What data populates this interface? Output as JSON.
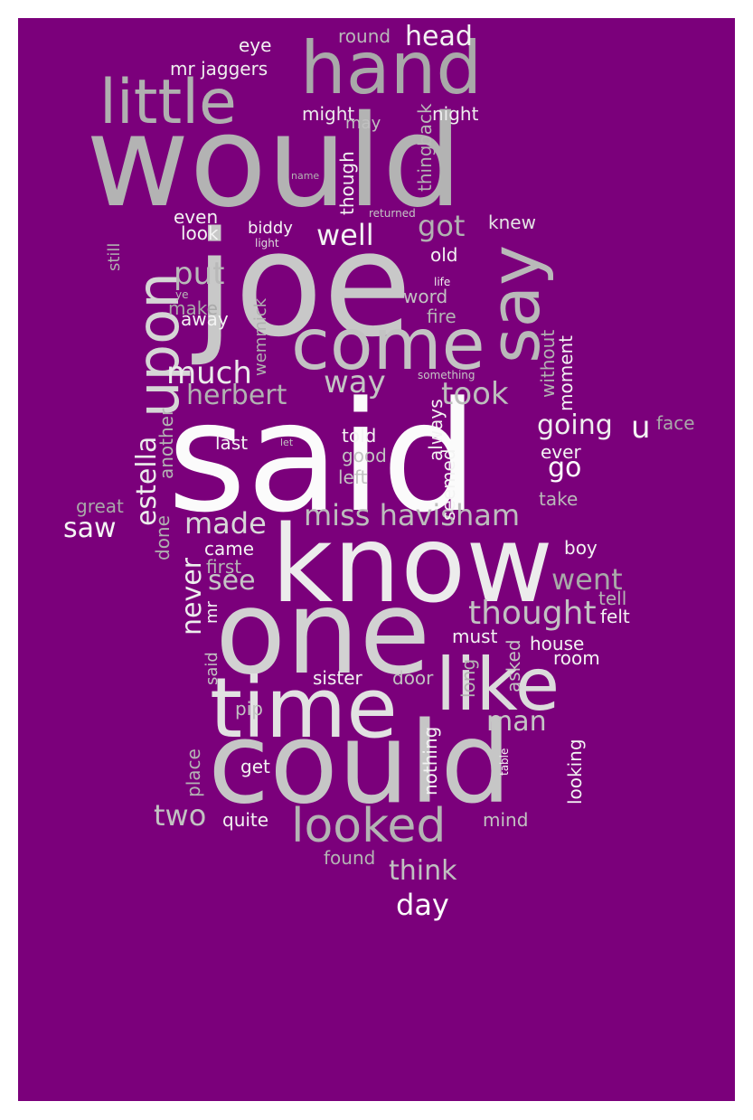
{
  "colors": {
    "background": "#7b007b",
    "page": "#ffffff"
  },
  "words": [
    {
      "id": "said",
      "text": "said",
      "color": "#fbfbfb"
    },
    {
      "id": "would",
      "text": "would",
      "color": "#b3b3b3"
    },
    {
      "id": "joe",
      "text": "joe",
      "color": "#c8c8c8"
    },
    {
      "id": "know",
      "text": "know",
      "color": "#ececec"
    },
    {
      "id": "one",
      "text": "one",
      "color": "#d2d2d2"
    },
    {
      "id": "could",
      "text": "could",
      "color": "#c6c6c6"
    },
    {
      "id": "time",
      "text": "time",
      "color": "#e2e2e2"
    },
    {
      "id": "like",
      "text": "like",
      "color": "#dcdcdc"
    },
    {
      "id": "hand",
      "text": "hand",
      "color": "#a9a9a9"
    },
    {
      "id": "come",
      "text": "come",
      "color": "#c3c3c3"
    },
    {
      "id": "say",
      "text": "say",
      "color": "#b9b9b9"
    },
    {
      "id": "upon",
      "text": "upon",
      "color": "#d6d6d6"
    },
    {
      "id": "little",
      "text": "little",
      "color": "#b0b0b0"
    },
    {
      "id": "looked",
      "text": "looked",
      "color": "#b4b4b4"
    },
    {
      "id": "miss-havisham",
      "text": "miss havisham",
      "color": "#bdbdbd"
    },
    {
      "id": "thought",
      "text": "thought",
      "color": "#c2c2c2"
    },
    {
      "id": "estella",
      "text": "estella",
      "color": "#ececec"
    },
    {
      "id": "made",
      "text": "made",
      "color": "#d8d8d8"
    },
    {
      "id": "much",
      "text": "much",
      "color": "#eaeaea"
    },
    {
      "id": "herbert",
      "text": "herbert",
      "color": "#b2b2b2"
    },
    {
      "id": "took",
      "text": "took",
      "color": "#bdbdbd"
    },
    {
      "id": "way",
      "text": "way",
      "color": "#c4c4c4"
    },
    {
      "id": "put",
      "text": "put",
      "color": "#b9b9b9"
    },
    {
      "id": "well",
      "text": "well",
      "color": "#f3f3f3"
    },
    {
      "id": "got",
      "text": "got",
      "color": "#b2b2b2"
    },
    {
      "id": "going",
      "text": "going",
      "color": "#efefef"
    },
    {
      "id": "u",
      "text": "u",
      "color": "#f5f5f5"
    },
    {
      "id": "go",
      "text": "go",
      "color": "#ffffff"
    },
    {
      "id": "went",
      "text": "went",
      "color": "#a9a9a9"
    },
    {
      "id": "saw",
      "text": "saw",
      "color": "#f5f5f5"
    },
    {
      "id": "never",
      "text": "never",
      "color": "#eeeeee"
    },
    {
      "id": "see",
      "text": "see",
      "color": "#c5c5c5"
    },
    {
      "id": "man",
      "text": "man",
      "color": "#c5c5c5"
    },
    {
      "id": "two",
      "text": "two",
      "color": "#c2c2c2"
    },
    {
      "id": "think",
      "text": "think",
      "color": "#c0c0c0"
    },
    {
      "id": "day",
      "text": "day",
      "color": "#fbfbfb"
    },
    {
      "id": "head",
      "text": "head",
      "color": "#f3f3f3"
    },
    {
      "id": "mr-jaggers",
      "text": "mr jaggers",
      "color": "#efefef"
    },
    {
      "id": "eye",
      "text": "eye",
      "color": "#f3f3f3"
    },
    {
      "id": "round",
      "text": "round",
      "color": "#b9b9b9"
    },
    {
      "id": "might",
      "text": "might",
      "color": "#ececec"
    },
    {
      "id": "back",
      "text": "back",
      "color": "#b9b9b9"
    },
    {
      "id": "night",
      "text": "night",
      "color": "#eeeeee"
    },
    {
      "id": "may",
      "text": "may",
      "color": "#c0c0c0"
    },
    {
      "id": "thing",
      "text": "thing",
      "color": "#b2b2b2"
    },
    {
      "id": "though",
      "text": "though",
      "color": "#f3f3f3"
    },
    {
      "id": "name",
      "text": "name",
      "color": "#b4b4b4"
    },
    {
      "id": "even",
      "text": "even",
      "color": "#f3f3f3"
    },
    {
      "id": "biddy",
      "text": "biddy",
      "color": "#f5f5f5"
    },
    {
      "id": "returned",
      "text": "returned",
      "color": "#c5c5c5"
    },
    {
      "id": "knew",
      "text": "knew",
      "color": "#e5e5e5"
    },
    {
      "id": "look",
      "text": "look",
      "color": "#f3f3f3"
    },
    {
      "id": "light",
      "text": "light",
      "color": "#dddddd"
    },
    {
      "id": "still",
      "text": "still",
      "color": "#b0b0b0"
    },
    {
      "id": "old",
      "text": "old",
      "color": "#f3f3f3"
    },
    {
      "id": "life",
      "text": "life",
      "color": "#eeeeee"
    },
    {
      "id": "ye",
      "text": "ye",
      "color": "#b9b9b9"
    },
    {
      "id": "make",
      "text": "make",
      "color": "#a9a9a9"
    },
    {
      "id": "word",
      "text": "word",
      "color": "#c2c2c2"
    },
    {
      "id": "fire",
      "text": "fire",
      "color": "#b4b4b4"
    },
    {
      "id": "away",
      "text": "away",
      "color": "#f3f3f3"
    },
    {
      "id": "wemmick",
      "text": "wemmick",
      "color": "#b0b0b0"
    },
    {
      "id": "without",
      "text": "without",
      "color": "#b2b2b2"
    },
    {
      "id": "something",
      "text": "something",
      "color": "#c5c5c5"
    },
    {
      "id": "moment",
      "text": "moment",
      "color": "#f3f3f3"
    },
    {
      "id": "always",
      "text": "always",
      "color": "#f3f3f3"
    },
    {
      "id": "another",
      "text": "another",
      "color": "#b4b4b4"
    },
    {
      "id": "told",
      "text": "told",
      "color": "#f3f3f3"
    },
    {
      "id": "face",
      "text": "face",
      "color": "#a9a9a9"
    },
    {
      "id": "last",
      "text": "last",
      "color": "#f3f3f3"
    },
    {
      "id": "let",
      "text": "let",
      "color": "#c2c2c2"
    },
    {
      "id": "good",
      "text": "good",
      "color": "#c2c2c2"
    },
    {
      "id": "seemed",
      "text": "seemed",
      "color": "#f3f3f3"
    },
    {
      "id": "ever",
      "text": "ever",
      "color": "#f3f3f3"
    },
    {
      "id": "left",
      "text": "left",
      "color": "#c2c2c2"
    },
    {
      "id": "take",
      "text": "take",
      "color": "#b9b9b9"
    },
    {
      "id": "great",
      "text": "great",
      "color": "#a9a9a9"
    },
    {
      "id": "done",
      "text": "done",
      "color": "#b0b0b0"
    },
    {
      "id": "came",
      "text": "came",
      "color": "#f3f3f3"
    },
    {
      "id": "boy",
      "text": "boy",
      "color": "#f3f3f3"
    },
    {
      "id": "first",
      "text": "first",
      "color": "#b4b4b4"
    },
    {
      "id": "tell",
      "text": "tell",
      "color": "#b4b4b4"
    },
    {
      "id": "mr",
      "text": "mr",
      "color": "#f3f3f3"
    },
    {
      "id": "felt",
      "text": "felt",
      "color": "#f3f3f3"
    },
    {
      "id": "must",
      "text": "must",
      "color": "#f3f3f3"
    },
    {
      "id": "house",
      "text": "house",
      "color": "#f3f3f3"
    },
    {
      "id": "said-small",
      "text": "said",
      "color": "#c2c2c2"
    },
    {
      "id": "room",
      "text": "room",
      "color": "#f3f3f3"
    },
    {
      "id": "asked",
      "text": "asked",
      "color": "#c2c2c2"
    },
    {
      "id": "sister",
      "text": "sister",
      "color": "#f3f3f3"
    },
    {
      "id": "door",
      "text": "door",
      "color": "#c2c2c2"
    },
    {
      "id": "long",
      "text": "long",
      "color": "#b4b4b4"
    },
    {
      "id": "pip",
      "text": "pip",
      "color": "#c2c2c2"
    },
    {
      "id": "nothing",
      "text": "nothing",
      "color": "#f3f3f3"
    },
    {
      "id": "table",
      "text": "table",
      "color": "#f3f3f3"
    },
    {
      "id": "looking",
      "text": "looking",
      "color": "#f3f3f3"
    },
    {
      "id": "place",
      "text": "place",
      "color": "#b4b4b4"
    },
    {
      "id": "get",
      "text": "get",
      "color": "#f3f3f3"
    },
    {
      "id": "quite",
      "text": "quite",
      "color": "#f3f3f3"
    },
    {
      "id": "mind",
      "text": "mind",
      "color": "#c2c2c2"
    },
    {
      "id": "found",
      "text": "found",
      "color": "#b4b4b4"
    }
  ]
}
